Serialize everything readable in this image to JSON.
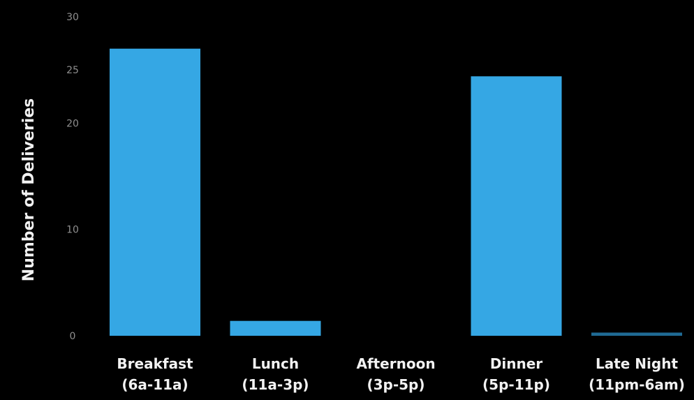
{
  "chart_data": {
    "type": "bar",
    "categories": [
      [
        "Breakfast",
        "(6a-11a)"
      ],
      [
        "Lunch",
        "(11a-3p)"
      ],
      [
        "Afternoon",
        "(3p-5p)"
      ],
      [
        "Dinner",
        "(5p-11p)"
      ],
      [
        "Late Night",
        "(11pm-6am)"
      ]
    ],
    "values": [
      27,
      1.4,
      0,
      24.4,
      0.3
    ],
    "ylabel": "Number of Deliveries",
    "yticks": [
      0,
      10,
      20,
      25,
      30
    ],
    "ylim": [
      0,
      30
    ],
    "grid": false,
    "colors": {
      "background": "#000000",
      "bar": "#35a7e4",
      "bar_dim": "#1f6a94",
      "tick_text": "#8f8f8f",
      "label_text": "#f2f2f2"
    }
  }
}
